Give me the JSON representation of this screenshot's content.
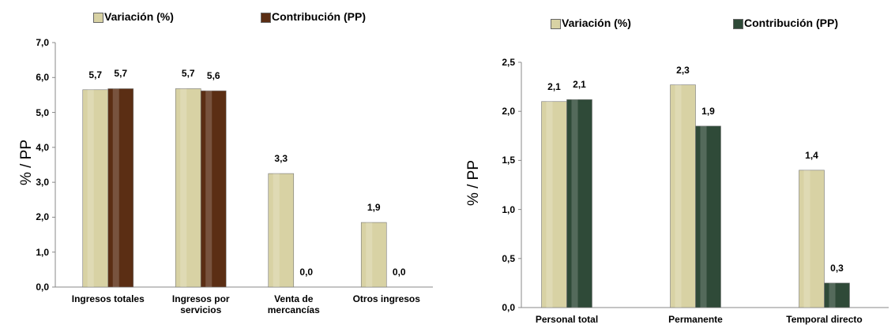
{
  "chart_data": [
    {
      "type": "bar",
      "y_label": "% / PP",
      "categories": [
        "Ingresos totales",
        "Ingresos por servicios",
        "Venta de mercancías",
        "Otros ingresos"
      ],
      "series": [
        {
          "name": "Variación (%)",
          "color": "#d8d2a4",
          "values": [
            5.65,
            5.68,
            3.25,
            1.85
          ],
          "value_labels": [
            "5,7",
            "5,7",
            "3,3",
            "1,9"
          ]
        },
        {
          "name": "Contribución (PP)",
          "color": "#5b2e14",
          "values": [
            5.68,
            5.62,
            0,
            0
          ],
          "value_labels": [
            "5,7",
            "5,6",
            "0,0",
            "0,0"
          ]
        }
      ],
      "ylim": [
        0,
        7
      ],
      "yticks": [
        {
          "value": 0,
          "label": "0,0"
        },
        {
          "value": 1,
          "label": "1,0"
        },
        {
          "value": 2,
          "label": "2,0"
        },
        {
          "value": 3,
          "label": "3,0"
        },
        {
          "value": 4,
          "label": "4,0"
        },
        {
          "value": 5,
          "label": "5,0"
        },
        {
          "value": 6,
          "label": "6,0"
        },
        {
          "value": 7,
          "label": "7,0"
        }
      ]
    },
    {
      "type": "bar",
      "y_label": "% / PP",
      "categories": [
        "Personal total",
        "Permanente",
        "Temporal directo"
      ],
      "series": [
        {
          "name": "Variación (%)",
          "color": "#d8d2a4",
          "values": [
            2.1,
            2.27,
            1.4
          ],
          "value_labels": [
            "2,1",
            "2,3",
            "1,4"
          ]
        },
        {
          "name": "Contribución (PP)",
          "color": "#2f4a38",
          "values": [
            2.12,
            1.85,
            0.25
          ],
          "value_labels": [
            "2,1",
            "1,9",
            "0,3"
          ]
        }
      ],
      "ylim": [
        0,
        2.5
      ],
      "yticks": [
        {
          "value": 0,
          "label": "0,0"
        },
        {
          "value": 0.5,
          "label": "0,5"
        },
        {
          "value": 1,
          "label": "1,0"
        },
        {
          "value": 1.5,
          "label": "1,5"
        },
        {
          "value": 2,
          "label": "2,0"
        },
        {
          "value": 2.5,
          "label": "2,5"
        }
      ]
    }
  ]
}
